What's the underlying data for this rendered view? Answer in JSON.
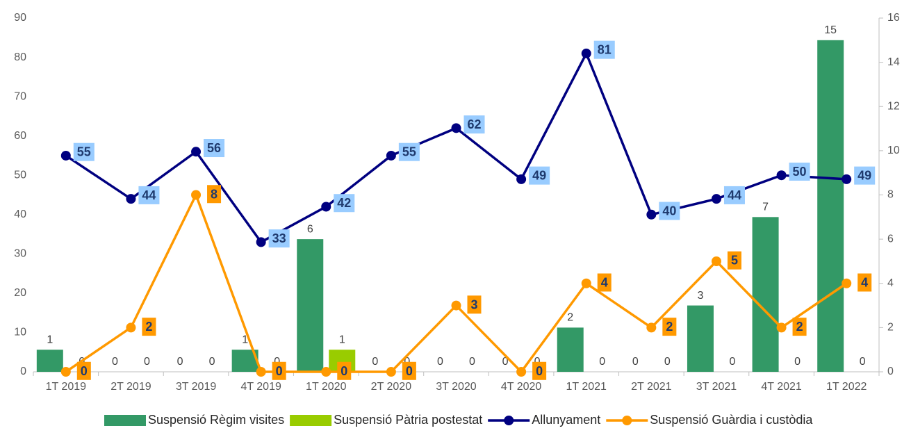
{
  "chart_data": {
    "type": "combo",
    "categories": [
      "1T 2019",
      "2T 2019",
      "3T 2019",
      "4T 2019",
      "1T 2020",
      "2T 2020",
      "3T 2020",
      "4T 2020",
      "1T 2021",
      "2T 2021",
      "3T 2021",
      "4T 2021",
      "1T 2022"
    ],
    "series": [
      {
        "name": "Suspensió Règim visites",
        "type": "bar",
        "axis": "y2",
        "color": "#339966",
        "values": [
          1,
          0,
          0,
          1,
          6,
          0,
          0,
          0,
          2,
          0,
          3,
          7,
          15
        ]
      },
      {
        "name": "Suspensió Pàtria postestat",
        "type": "bar",
        "axis": "y2",
        "color": "#99cc00",
        "values": [
          0,
          0,
          0,
          0,
          1,
          0,
          0,
          0,
          0,
          0,
          0,
          0,
          0
        ]
      },
      {
        "name": "Allunyament",
        "type": "line",
        "axis": "y",
        "color": "#000080",
        "label_bg": "#99ccff",
        "values": [
          55,
          44,
          56,
          33,
          42,
          55,
          62,
          49,
          81,
          40,
          44,
          50,
          49
        ]
      },
      {
        "name": "Suspensió Guàrdia i custòdia",
        "type": "line",
        "axis": "y2",
        "color": "#ff9900",
        "label_bg": "#ff9900",
        "values": [
          0,
          2,
          8,
          0,
          0,
          0,
          3,
          0,
          4,
          2,
          5,
          2,
          4
        ]
      }
    ],
    "ylim": [
      0,
      90
    ],
    "yticks": [
      0,
      10,
      20,
      30,
      40,
      50,
      60,
      70,
      80,
      90
    ],
    "y2lim": [
      0,
      16
    ],
    "y2ticks": [
      0,
      2,
      4,
      6,
      8,
      10,
      12,
      14,
      16
    ],
    "legend": "bottom"
  }
}
